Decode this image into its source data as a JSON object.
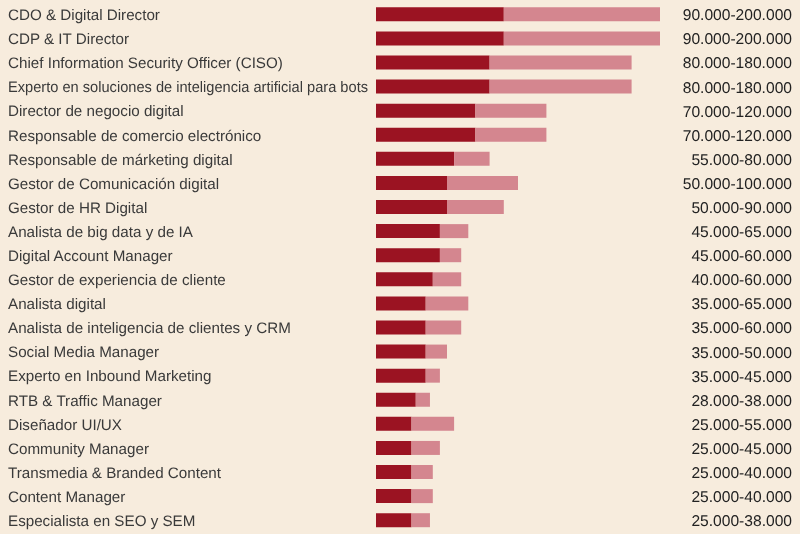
{
  "chart_data": {
    "type": "bar",
    "orientation": "horizontal",
    "stacked": true,
    "xlim": [
      0,
      200000
    ],
    "tick_labels": "y",
    "categories": [
      "CDO & Digital Director",
      "CDP & IT Director",
      "Chief Information Security Officer (CISO)",
      "Experto en soluciones de inteligencia artificial para bots",
      "Director de negocio digital",
      "Responsable de comercio electrónico",
      "Responsable de márketing digital",
      "Gestor de Comunicación digital",
      "Gestor de HR Digital",
      "Analista de big data y de IA",
      "Digital Account Manager",
      "Gestor de experiencia de cliente",
      "Analista digital",
      "Analista de inteligencia de clientes y CRM",
      "Social Media Manager",
      "Experto en Inbound Marketing",
      "RTB & Traffic Manager",
      "Diseñador UI/UX",
      "Community Manager",
      "Transmedia & Branded Content",
      "Content Manager",
      "Especialista en SEO y SEM"
    ],
    "series": [
      {
        "color": "#9b1322",
        "values": [
          90000,
          90000,
          80000,
          80000,
          70000,
          70000,
          55000,
          50000,
          50000,
          45000,
          45000,
          40000,
          35000,
          35000,
          35000,
          35000,
          28000,
          25000,
          25000,
          25000,
          25000,
          25000
        ]
      },
      {
        "color": "#d4868f",
        "values": [
          110000,
          110000,
          100000,
          100000,
          50000,
          50000,
          25000,
          50000,
          40000,
          20000,
          15000,
          20000,
          30000,
          25000,
          15000,
          10000,
          10000,
          30000,
          20000,
          15000,
          15000,
          13000
        ],
        "value_labels": [
          "90.000-200.000",
          "90.000-200.000",
          "80.000-180.000",
          "80.000-180.000",
          "70.000-120.000",
          "70.000-120.000",
          "55.000-80.000",
          "50.000-100.000",
          "50.000-90.000",
          "45.000-65.000",
          "45.000-60.000",
          "40.000-60.000",
          "35.000-65.000",
          "35.000-60.000",
          "35.000-50.000",
          "35.000-45.000",
          "28.000-38.000",
          "25.000-55.000",
          "25.000-45.000",
          "25.000-40.000",
          "25.000-40.000",
          "25.000-38.000"
        ]
      }
    ]
  }
}
